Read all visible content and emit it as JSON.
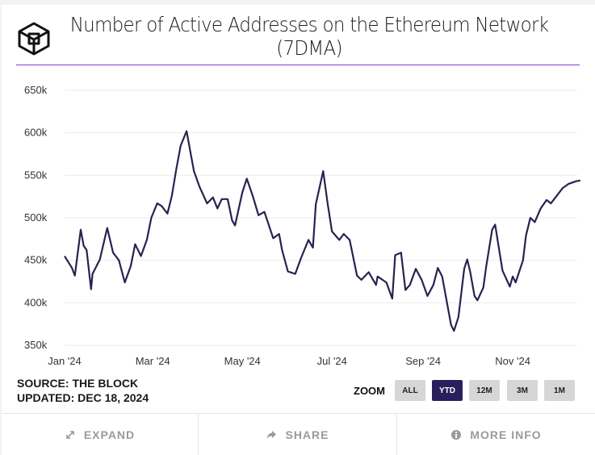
{
  "header": {
    "title_line1": "Number of Active Addresses on the Ethereum Network",
    "title_line2": "(7DMA)",
    "logo": "the-block-cube-logo"
  },
  "footer": {
    "source": "SOURCE: THE BLOCK",
    "updated": "UPDATED: DEC 18, 2024",
    "zoom_label": "ZOOM",
    "zoom_buttons": [
      {
        "label": "ALL",
        "active": false
      },
      {
        "label": "YTD",
        "active": true
      },
      {
        "label": "12M",
        "active": false
      },
      {
        "label": "3M",
        "active": false
      },
      {
        "label": "1M",
        "active": false
      }
    ],
    "actions": [
      {
        "label": "EXPAND",
        "icon": "expand-icon"
      },
      {
        "label": "SHARE",
        "icon": "share-icon"
      },
      {
        "label": "MORE INFO",
        "icon": "info-icon"
      }
    ]
  },
  "colors": {
    "line": "#272350",
    "accent": "#7a3fc8",
    "zoom_active": "#2a1f5c"
  },
  "chart_data": {
    "type": "line",
    "title": "Number of Active Addresses on the Ethereum Network (7DMA)",
    "ylim": [
      350000,
      650000
    ],
    "yticks": [
      {
        "v": 650000,
        "label": "650k"
      },
      {
        "v": 600000,
        "label": "600k"
      },
      {
        "v": 550000,
        "label": "550k"
      },
      {
        "v": 500000,
        "label": "500k"
      },
      {
        "v": 450000,
        "label": "450k"
      },
      {
        "v": 400000,
        "label": "400k"
      },
      {
        "v": 350000,
        "label": "350k"
      }
    ],
    "xticks": [
      {
        "date": "2024-01-01",
        "label": "Jan '24"
      },
      {
        "date": "2024-03-01",
        "label": "Mar '24"
      },
      {
        "date": "2024-05-01",
        "label": "May '24"
      },
      {
        "date": "2024-07-01",
        "label": "Jul '24"
      },
      {
        "date": "2024-09-01",
        "label": "Sep '24"
      },
      {
        "date": "2024-11-01",
        "label": "Nov '24"
      }
    ],
    "grid": true,
    "series": [
      {
        "points": [
          [
            "2024-01-01",
            455000
          ],
          [
            "2024-01-06",
            441000
          ],
          [
            "2024-01-08",
            432000
          ],
          [
            "2024-01-12",
            486000
          ],
          [
            "2024-01-14",
            467000
          ],
          [
            "2024-01-16",
            462000
          ],
          [
            "2024-01-19",
            416000
          ],
          [
            "2024-01-20",
            434000
          ],
          [
            "2024-01-25",
            451000
          ],
          [
            "2024-01-30",
            488000
          ],
          [
            "2024-02-03",
            459000
          ],
          [
            "2024-02-07",
            450000
          ],
          [
            "2024-02-11",
            424000
          ],
          [
            "2024-02-15",
            443000
          ],
          [
            "2024-02-18",
            469000
          ],
          [
            "2024-02-22",
            455000
          ],
          [
            "2024-02-26",
            474000
          ],
          [
            "2024-02-29",
            500000
          ],
          [
            "2024-03-04",
            517000
          ],
          [
            "2024-03-07",
            514000
          ],
          [
            "2024-03-11",
            505000
          ],
          [
            "2024-03-14",
            526000
          ],
          [
            "2024-03-17",
            557000
          ],
          [
            "2024-03-20",
            585000
          ],
          [
            "2024-03-24",
            602000
          ],
          [
            "2024-03-29",
            555000
          ],
          [
            "2024-04-02",
            536000
          ],
          [
            "2024-04-07",
            517000
          ],
          [
            "2024-04-11",
            524000
          ],
          [
            "2024-04-14",
            511000
          ],
          [
            "2024-04-17",
            522000
          ],
          [
            "2024-04-21",
            522000
          ],
          [
            "2024-04-24",
            497000
          ],
          [
            "2024-04-26",
            491000
          ],
          [
            "2024-05-01",
            530000
          ],
          [
            "2024-05-04",
            546000
          ],
          [
            "2024-05-08",
            526000
          ],
          [
            "2024-05-12",
            503000
          ],
          [
            "2024-05-16",
            507000
          ],
          [
            "2024-05-22",
            476000
          ],
          [
            "2024-05-26",
            481000
          ],
          [
            "2024-05-28",
            462000
          ],
          [
            "2024-06-01",
            437000
          ],
          [
            "2024-06-06",
            434000
          ],
          [
            "2024-06-10",
            453000
          ],
          [
            "2024-06-15",
            474000
          ],
          [
            "2024-06-18",
            465000
          ],
          [
            "2024-06-20",
            516000
          ],
          [
            "2024-06-25",
            555000
          ],
          [
            "2024-06-28",
            517000
          ],
          [
            "2024-07-01",
            484000
          ],
          [
            "2024-07-06",
            474000
          ],
          [
            "2024-07-09",
            481000
          ],
          [
            "2024-07-13",
            474000
          ],
          [
            "2024-07-18",
            432000
          ],
          [
            "2024-07-21",
            427000
          ],
          [
            "2024-07-26",
            436000
          ],
          [
            "2024-07-31",
            421000
          ],
          [
            "2024-08-01",
            431000
          ],
          [
            "2024-08-07",
            424000
          ],
          [
            "2024-08-11",
            405000
          ],
          [
            "2024-08-13",
            456000
          ],
          [
            "2024-08-17",
            459000
          ],
          [
            "2024-08-20",
            415000
          ],
          [
            "2024-08-23",
            421000
          ],
          [
            "2024-08-27",
            440000
          ],
          [
            "2024-08-31",
            427000
          ],
          [
            "2024-09-04",
            408000
          ],
          [
            "2024-09-08",
            421000
          ],
          [
            "2024-09-11",
            441000
          ],
          [
            "2024-09-14",
            431000
          ],
          [
            "2024-09-20",
            374000
          ],
          [
            "2024-09-22",
            367000
          ],
          [
            "2024-09-25",
            383000
          ],
          [
            "2024-09-29",
            440000
          ],
          [
            "2024-10-01",
            451000
          ],
          [
            "2024-10-03",
            437000
          ],
          [
            "2024-10-06",
            408000
          ],
          [
            "2024-10-08",
            403000
          ],
          [
            "2024-10-12",
            418000
          ],
          [
            "2024-10-14",
            443000
          ],
          [
            "2024-10-18",
            486000
          ],
          [
            "2024-10-20",
            492000
          ],
          [
            "2024-10-25",
            438000
          ],
          [
            "2024-10-30",
            419000
          ],
          [
            "2024-11-01",
            431000
          ],
          [
            "2024-11-03",
            424000
          ],
          [
            "2024-11-08",
            450000
          ],
          [
            "2024-11-10",
            479000
          ],
          [
            "2024-11-13",
            500000
          ],
          [
            "2024-11-16",
            495000
          ],
          [
            "2024-11-20",
            511000
          ],
          [
            "2024-11-24",
            521000
          ],
          [
            "2024-11-27",
            517000
          ],
          [
            "2024-12-05",
            535000
          ],
          [
            "2024-12-09",
            540000
          ],
          [
            "2024-12-14",
            543000
          ],
          [
            "2024-12-17",
            544000
          ]
        ]
      }
    ]
  }
}
